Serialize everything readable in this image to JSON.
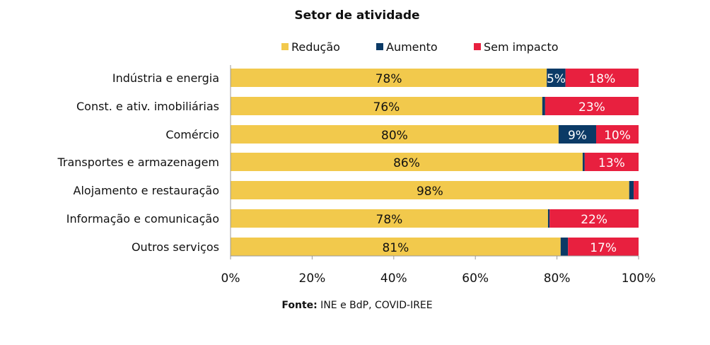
{
  "chart_data": {
    "type": "bar",
    "orientation": "horizontal",
    "stacked": true,
    "title": "Setor de atividade",
    "source_label": "Fonte:",
    "source_text": " INE e BdP, COVID-IREE",
    "categories": [
      "Indústria e energia",
      "Const. e ativ. imobiliárias",
      "Comércio",
      "Transportes e armazenagem",
      "Alojamento e restauração",
      "Informação e comunicação",
      "Outros serviços"
    ],
    "series": [
      {
        "name": "Redução",
        "color": "#F2C94C",
        "values": [
          77.5,
          76.4,
          80.4,
          86.3,
          97.7,
          77.8,
          80.9
        ],
        "labels": [
          "78%",
          "76%",
          "80%",
          "86%",
          "98%",
          "78%",
          "81%"
        ]
      },
      {
        "name": "Aumento",
        "color": "#0B3A66",
        "values": [
          4.6,
          0.7,
          9.2,
          0.5,
          1.1,
          0.4,
          1.8
        ],
        "labels": [
          "5%",
          "",
          "9%",
          "",
          "",
          "",
          ""
        ]
      },
      {
        "name": "Sem impacto",
        "color": "#E8203F",
        "values": [
          17.9,
          22.9,
          10.4,
          13.2,
          1.2,
          21.8,
          17.3
        ],
        "labels": [
          "18%",
          "23%",
          "10%",
          "13%",
          "",
          "22%",
          "17%"
        ]
      }
    ],
    "xlim": [
      0,
      100
    ],
    "xticks": [
      "0%",
      "20%",
      "40%",
      "60%",
      "80%",
      "100%"
    ],
    "legend": "top"
  }
}
